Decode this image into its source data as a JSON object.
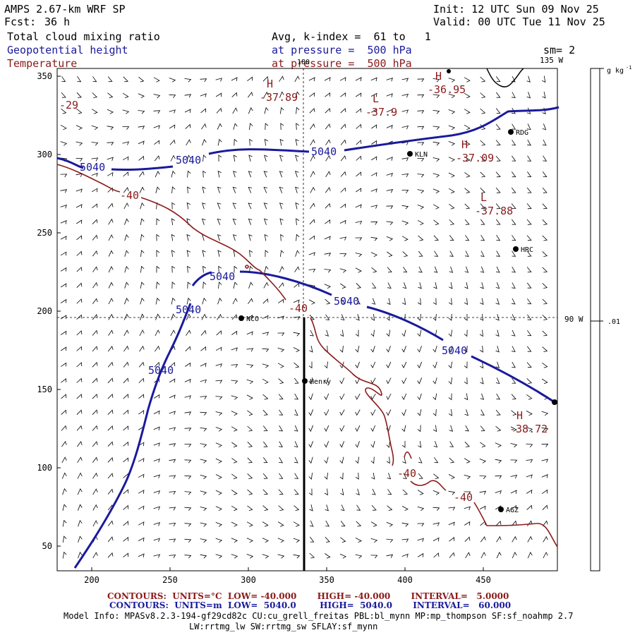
{
  "header": {
    "title": "AMPS 2.67-km WRF SP",
    "fcst_label": "Fcst:",
    "fcst_value": "36 h",
    "init": "Init: 12 UTC Sun 09 Nov 25",
    "valid": "Valid: 00 UTC Tue 11 Nov 25",
    "field1": "Total cloud mixing ratio",
    "field1_desc": "Avg, k-index =  61 to   1",
    "field2": "Geopotential height",
    "field2_desc": "at pressure =  500 hPa",
    "field3": "Temperature",
    "field3_desc": "at pressure =  500 hPa",
    "sm": "sm= 2"
  },
  "map": {
    "x_ticks": [
      "200",
      "250",
      "300",
      "350",
      "400",
      "450"
    ],
    "y_ticks": [
      "350",
      "300",
      "250",
      "200",
      "150",
      "100",
      "50"
    ],
    "meridian_top": "180",
    "meridian_135": "135 W",
    "meridian_90": "90 W",
    "stations": [
      "RDG",
      "KLN",
      "HRC",
      "NCO",
      "Henry",
      "AGZ"
    ],
    "height_labels": [
      "5040",
      "5040",
      "5040",
      "5040",
      "5040",
      "5040",
      "5040",
      "5040"
    ],
    "temp_labels": [
      "-40",
      "-40",
      "-40",
      "-40"
    ],
    "highs_lows": [
      {
        "sym": "H",
        "val": "-37.89"
      },
      {
        "sym": "L",
        "val": "-37.9"
      },
      {
        "sym": "H",
        "val": "-36.95"
      },
      {
        "sym": "H",
        "val": "-37.09"
      },
      {
        "sym": "L",
        "val": "-37.88"
      },
      {
        "sym": "H",
        "val": "-38.72"
      }
    ],
    "corner_value": "-29"
  },
  "colorbar": {
    "units": "g kg",
    "units_sup": "-1",
    "tick": ".01"
  },
  "footer": {
    "contours1": "CONTOURS:  UNITS=°C  LOW= -40.000       HIGH= -40.000       INTERVAL=   5.0000",
    "contours2": "CONTOURS:  UNITS=m  LOW=  5040.0        HIGH=  5040.0       INTERVAL=   60.000",
    "model_info1": "Model Info: MPASv8.2.3-194-gf29cd82c CU:cu_grell_freitas PBL:bl_mynn MP:mp_thompson SF:sf_noahmp 2.7",
    "model_info2": "LW:rrtmg_lw SW:rrtmg_sw SFLAY:sf_mynn"
  },
  "colors": {
    "height": "#1a1a9c",
    "temperature": "#8b1a1a",
    "text": "#000000"
  }
}
